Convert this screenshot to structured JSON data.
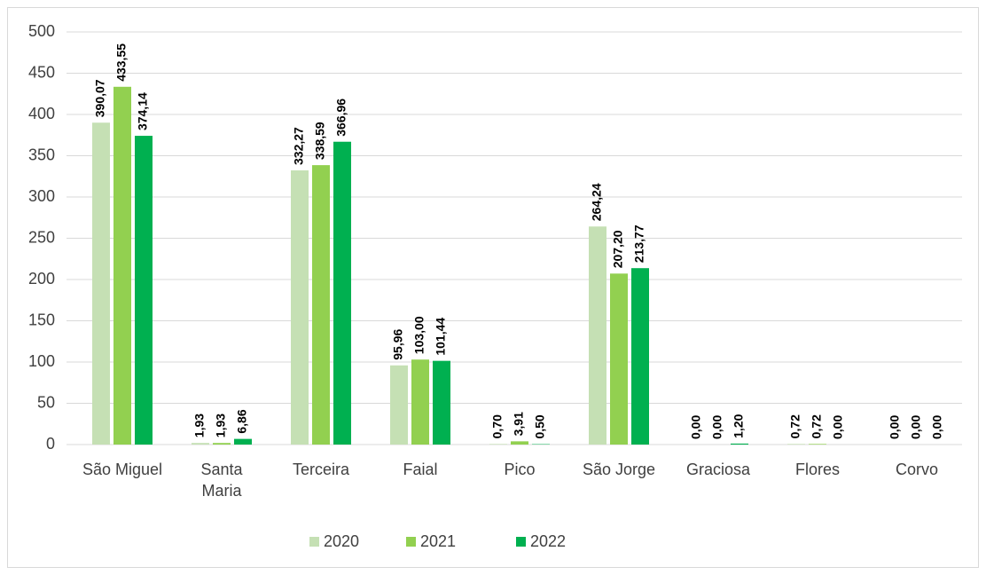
{
  "chart_data": {
    "type": "bar",
    "categories": [
      "São Miguel",
      "Santa\nMaria",
      "Terceira",
      "Faial",
      "Pico",
      "São Jorge",
      "Graciosa",
      "Flores",
      "Corvo"
    ],
    "series": [
      {
        "name": "2020",
        "color": "#c5e0b4",
        "values": [
          390.07,
          1.93,
          332.27,
          95.96,
          0.7,
          264.24,
          0.0,
          0.72,
          0.0
        ],
        "value_labels": [
          "390,07",
          "1,93",
          "332,27",
          "95,96",
          "0,70",
          "264,24",
          "0,00",
          "0,72",
          "0,00"
        ]
      },
      {
        "name": "2021",
        "color": "#92d050",
        "values": [
          433.55,
          1.93,
          338.59,
          103.0,
          3.91,
          207.2,
          0.0,
          0.72,
          0.0
        ],
        "value_labels": [
          "433,55",
          "1,93",
          "338,59",
          "103,00",
          "3,91",
          "207,20",
          "0,00",
          "0,72",
          "0,00"
        ]
      },
      {
        "name": "2022",
        "color": "#00b050",
        "values": [
          374.14,
          6.86,
          366.96,
          101.44,
          0.5,
          213.77,
          1.2,
          0.0,
          0.0
        ],
        "value_labels": [
          "374,14",
          "6,86",
          "366,96",
          "101,44",
          "0,50",
          "213,77",
          "1,20",
          "0,00",
          "0,00"
        ]
      }
    ],
    "ylim": [
      0,
      500
    ],
    "yticks": [
      0,
      50,
      100,
      150,
      200,
      250,
      300,
      350,
      400,
      450,
      500
    ],
    "grid": true,
    "legend": "bottom"
  }
}
